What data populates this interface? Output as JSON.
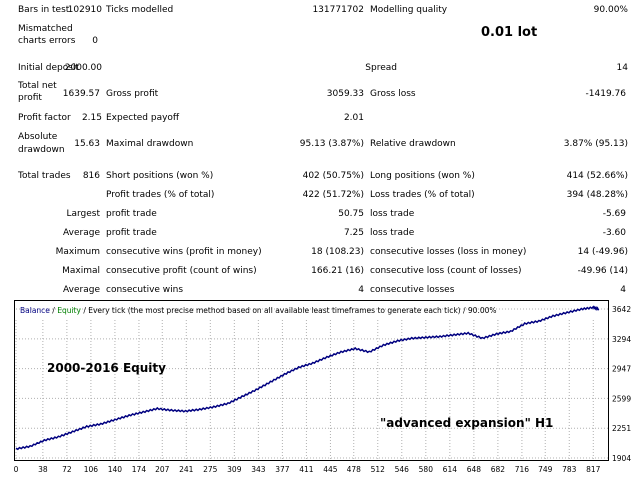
{
  "annotation_lot": "0.01 lot",
  "rows": [
    {
      "top": 5,
      "cells": [
        {
          "x": 18,
          "w": 0,
          "t": "Bars in test"
        },
        {
          "x": 64,
          "w": 38,
          "t": "102910",
          "r": true
        },
        {
          "x": 106,
          "w": 0,
          "t": "Ticks modelled"
        },
        {
          "x": 284,
          "w": 80,
          "t": "131771702",
          "r": true
        },
        {
          "x": 370,
          "w": 0,
          "t": "Modelling quality"
        },
        {
          "x": 570,
          "w": 58,
          "t": "90.00%",
          "r": true
        }
      ]
    },
    {
      "top": 24,
      "cells": [
        {
          "x": 18,
          "w": 0,
          "t": "Mismatched"
        }
      ]
    },
    {
      "top": 36,
      "cells": [
        {
          "x": 18,
          "w": 0,
          "t": "charts errors"
        },
        {
          "x": 70,
          "w": 28,
          "t": "0",
          "r": true
        }
      ]
    },
    {
      "top": 63,
      "cells": [
        {
          "x": 18,
          "w": 0,
          "t": "Initial deposit"
        },
        {
          "x": 58,
          "w": 44,
          "t": "2000.00",
          "r": true
        },
        {
          "x": 300,
          "w": 97,
          "t": "Spread",
          "r": true
        },
        {
          "x": 570,
          "w": 58,
          "t": "14",
          "r": true
        }
      ]
    },
    {
      "top": 81,
      "cells": [
        {
          "x": 18,
          "w": 0,
          "t": "Total net"
        }
      ]
    },
    {
      "top": 89,
      "cells": [
        {
          "x": 56,
          "w": 44,
          "t": "1639.57",
          "r": true
        },
        {
          "x": 106,
          "w": 0,
          "t": "Gross profit"
        },
        {
          "x": 280,
          "w": 84,
          "t": "3059.33",
          "r": true
        },
        {
          "x": 370,
          "w": 0,
          "t": "Gross loss"
        },
        {
          "x": 560,
          "w": 66,
          "t": "-1419.76",
          "r": true
        }
      ]
    },
    {
      "top": 93,
      "cells": [
        {
          "x": 18,
          "w": 0,
          "t": "profit"
        }
      ]
    },
    {
      "top": 113,
      "cells": [
        {
          "x": 18,
          "w": 0,
          "t": "Profit factor"
        },
        {
          "x": 66,
          "w": 36,
          "t": "2.15",
          "r": true
        },
        {
          "x": 106,
          "w": 0,
          "t": "Expected payoff"
        },
        {
          "x": 300,
          "w": 64,
          "t": "2.01",
          "r": true
        }
      ]
    },
    {
      "top": 132,
      "cells": [
        {
          "x": 18,
          "w": 0,
          "t": "Absolute"
        }
      ]
    },
    {
      "top": 139,
      "cells": [
        {
          "x": 62,
          "w": 38,
          "t": "15.63",
          "r": true
        },
        {
          "x": 106,
          "w": 0,
          "t": "Maximal drawdown"
        },
        {
          "x": 260,
          "w": 104,
          "t": "95.13 (3.87%)",
          "r": true
        },
        {
          "x": 370,
          "w": 0,
          "t": "Relative drawdown"
        },
        {
          "x": 530,
          "w": 98,
          "t": "3.87% (95.13)",
          "r": true
        }
      ]
    },
    {
      "top": 145,
      "cells": [
        {
          "x": 18,
          "w": 0,
          "t": "drawdown"
        }
      ]
    },
    {
      "top": 171,
      "cells": [
        {
          "x": 18,
          "w": 0,
          "t": "Total trades"
        },
        {
          "x": 70,
          "w": 30,
          "t": "816",
          "r": true
        },
        {
          "x": 106,
          "w": 0,
          "t": "Short positions (won %)"
        },
        {
          "x": 260,
          "w": 104,
          "t": "402 (50.75%)",
          "r": true
        },
        {
          "x": 370,
          "w": 0,
          "t": "Long positions (won %)"
        },
        {
          "x": 530,
          "w": 98,
          "t": "414 (52.66%)",
          "r": true
        }
      ]
    },
    {
      "top": 190,
      "cells": [
        {
          "x": 106,
          "w": 0,
          "t": "Profit trades (% of total)"
        },
        {
          "x": 260,
          "w": 104,
          "t": "422 (51.72%)",
          "r": true
        },
        {
          "x": 370,
          "w": 0,
          "t": "Loss trades (% of total)"
        },
        {
          "x": 530,
          "w": 98,
          "t": "394 (48.28%)",
          "r": true
        }
      ]
    },
    {
      "top": 209,
      "cells": [
        {
          "x": 40,
          "w": 60,
          "t": "Largest",
          "r": true
        },
        {
          "x": 106,
          "w": 0,
          "t": "profit trade"
        },
        {
          "x": 280,
          "w": 84,
          "t": "50.75",
          "r": true
        },
        {
          "x": 370,
          "w": 0,
          "t": "loss trade"
        },
        {
          "x": 560,
          "w": 66,
          "t": "-5.69",
          "r": true
        }
      ]
    },
    {
      "top": 228,
      "cells": [
        {
          "x": 40,
          "w": 60,
          "t": "Average",
          "r": true
        },
        {
          "x": 106,
          "w": 0,
          "t": "profit trade"
        },
        {
          "x": 280,
          "w": 84,
          "t": "7.25",
          "r": true
        },
        {
          "x": 370,
          "w": 0,
          "t": "loss trade"
        },
        {
          "x": 560,
          "w": 66,
          "t": "-3.60",
          "r": true
        }
      ]
    },
    {
      "top": 247,
      "cells": [
        {
          "x": 40,
          "w": 60,
          "t": "Maximum",
          "r": true
        },
        {
          "x": 106,
          "w": 0,
          "t": "consecutive wins (profit in money)"
        },
        {
          "x": 260,
          "w": 104,
          "t": "18 (108.23)",
          "r": true
        },
        {
          "x": 370,
          "w": 0,
          "t": "consecutive losses (loss in money)"
        },
        {
          "x": 530,
          "w": 98,
          "t": "14 (-49.96)",
          "r": true
        }
      ]
    },
    {
      "top": 266,
      "cells": [
        {
          "x": 40,
          "w": 60,
          "t": "Maximal",
          "r": true
        },
        {
          "x": 106,
          "w": 0,
          "t": "consecutive profit (count of wins)"
        },
        {
          "x": 260,
          "w": 104,
          "t": "166.21 (16)",
          "r": true
        },
        {
          "x": 370,
          "w": 0,
          "t": "consecutive loss (count of losses)"
        },
        {
          "x": 530,
          "w": 98,
          "t": "-49.96 (14)",
          "r": true
        }
      ]
    },
    {
      "top": 285,
      "cells": [
        {
          "x": 40,
          "w": 60,
          "t": "Average",
          "r": true
        },
        {
          "x": 106,
          "w": 0,
          "t": "consecutive wins"
        },
        {
          "x": 280,
          "w": 84,
          "t": "4",
          "r": true
        },
        {
          "x": 370,
          "w": 0,
          "t": "consecutive losses"
        },
        {
          "x": 560,
          "w": 66,
          "t": "4",
          "r": true
        }
      ]
    }
  ],
  "chart_data": {
    "type": "line",
    "header_balance": "Balance",
    "header_sep": " / ",
    "header_equity": "Equity",
    "header_rest": " / Every tick (the most precise method based on all available least timeframes to generate each tick) / 90.00%",
    "annotation_title": "2000-2016 Equity",
    "annotation_strategy": "\"advanced expansion\"  H1",
    "x_ticks": [
      0,
      38,
      72,
      106,
      140,
      174,
      207,
      241,
      275,
      309,
      343,
      377,
      411,
      445,
      478,
      512,
      546,
      580,
      614,
      648,
      682,
      716,
      749,
      783,
      817
    ],
    "y_ticks": [
      1904,
      2251,
      2599,
      2947,
      3294,
      3642
    ],
    "xlim": [
      0,
      835
    ],
    "ylim": [
      1904,
      3700
    ],
    "grid": true,
    "series": [
      {
        "x": [
          0,
          20,
          40,
          60,
          80,
          100,
          120,
          140,
          160,
          180,
          200,
          220,
          240,
          260,
          280,
          300,
          320,
          340,
          360,
          380,
          400,
          420,
          440,
          460,
          480,
          500,
          520,
          540,
          560,
          580,
          600,
          620,
          640,
          660,
          680,
          700,
          720,
          740,
          760,
          780,
          800,
          817,
          825
        ],
        "values": [
          2010,
          2040,
          2110,
          2150,
          2210,
          2270,
          2300,
          2350,
          2400,
          2440,
          2480,
          2460,
          2450,
          2470,
          2500,
          2540,
          2620,
          2700,
          2790,
          2880,
          2960,
          3010,
          3080,
          3140,
          3180,
          3140,
          3220,
          3270,
          3300,
          3310,
          3320,
          3340,
          3360,
          3300,
          3350,
          3380,
          3470,
          3500,
          3560,
          3600,
          3640,
          3660,
          3640
        ]
      }
    ]
  }
}
